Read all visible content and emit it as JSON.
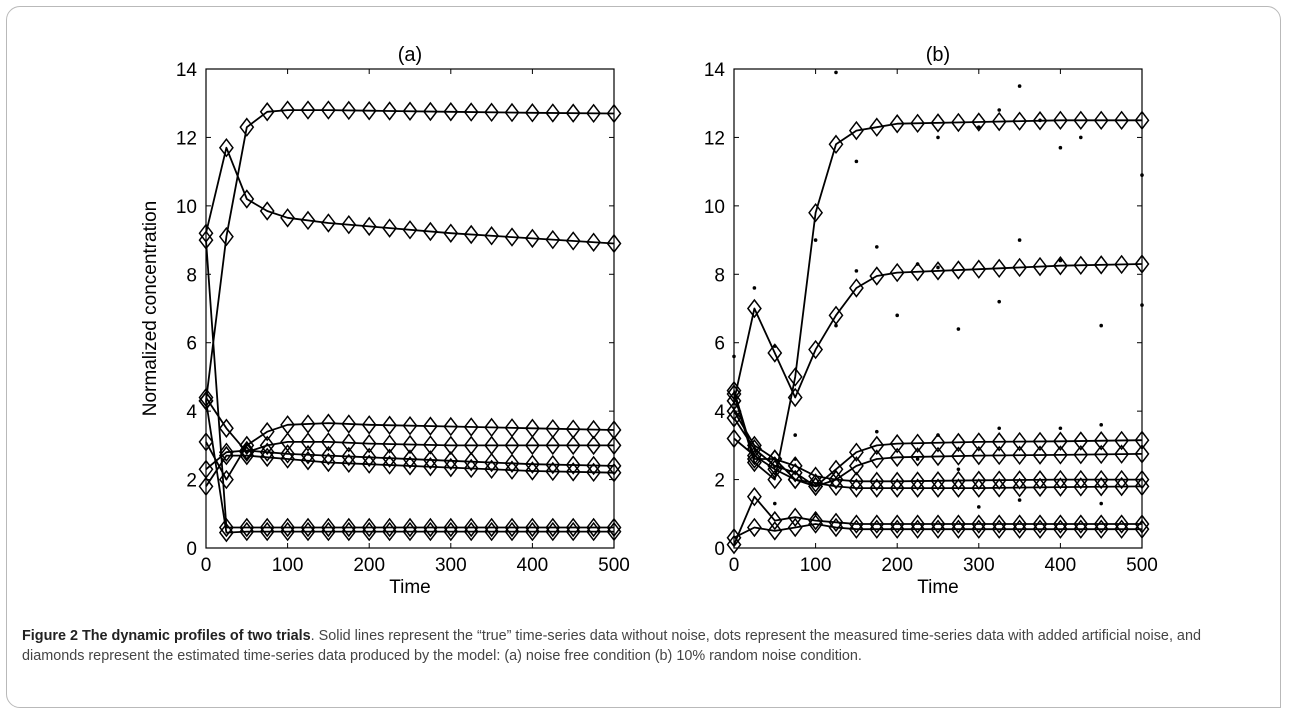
{
  "chart_data": [
    {
      "type": "line",
      "title": "(a)",
      "xlabel": "Time",
      "ylabel": "Normalized concentration",
      "xlim": [
        0,
        500
      ],
      "ylim": [
        0,
        14
      ],
      "xticks": [
        0,
        100,
        200,
        300,
        400,
        500
      ],
      "yticks": [
        0,
        2,
        4,
        6,
        8,
        10,
        12,
        14
      ],
      "marker_x": [
        0,
        25,
        50,
        75,
        100,
        125,
        150,
        175,
        200,
        225,
        250,
        275,
        300,
        325,
        350,
        375,
        400,
        425,
        450,
        475,
        500
      ],
      "series": [
        {
          "x": [
            0,
            25,
            50,
            75,
            100,
            150,
            200,
            300,
            400,
            500
          ],
          "values": [
            4.3,
            9.1,
            12.3,
            12.75,
            12.8,
            12.8,
            12.78,
            12.75,
            12.72,
            12.7
          ],
          "markers": true,
          "dots": false
        },
        {
          "x": [
            0,
            25,
            50,
            75,
            100,
            150,
            200,
            300,
            400,
            500
          ],
          "values": [
            9.2,
            11.7,
            10.2,
            9.85,
            9.65,
            9.5,
            9.4,
            9.2,
            9.05,
            8.9
          ],
          "markers": true,
          "dots": false
        },
        {
          "x": [
            0,
            25,
            50,
            75,
            100,
            150,
            200,
            300,
            400,
            500
          ],
          "values": [
            3.1,
            2.0,
            3.0,
            3.4,
            3.6,
            3.65,
            3.6,
            3.55,
            3.5,
            3.45
          ],
          "markers": true,
          "dots": false
        },
        {
          "x": [
            0,
            25,
            50,
            75,
            100,
            150,
            200,
            300,
            400,
            500
          ],
          "values": [
            4.4,
            3.5,
            2.8,
            3.0,
            3.1,
            3.1,
            3.05,
            3.0,
            3.0,
            3.0
          ],
          "markers": true,
          "dots": false
        },
        {
          "x": [
            0,
            25,
            50,
            75,
            100,
            150,
            200,
            300,
            400,
            500
          ],
          "values": [
            2.3,
            2.8,
            2.85,
            2.8,
            2.75,
            2.7,
            2.65,
            2.55,
            2.45,
            2.4
          ],
          "markers": true,
          "dots": false
        },
        {
          "x": [
            0,
            25,
            50,
            75,
            100,
            150,
            200,
            300,
            400,
            500
          ],
          "values": [
            1.8,
            2.7,
            2.7,
            2.65,
            2.6,
            2.5,
            2.45,
            2.35,
            2.25,
            2.2
          ],
          "markers": true,
          "dots": false
        },
        {
          "x": [
            0,
            25,
            50,
            75,
            100,
            200,
            300,
            400,
            500
          ],
          "values": [
            9.0,
            0.6,
            0.6,
            0.6,
            0.6,
            0.6,
            0.6,
            0.6,
            0.6
          ],
          "markers": true,
          "dots": false
        },
        {
          "x": [
            0,
            25,
            50,
            75,
            100,
            200,
            300,
            400,
            500
          ],
          "values": [
            4.3,
            0.45,
            0.48,
            0.48,
            0.48,
            0.48,
            0.48,
            0.48,
            0.48
          ],
          "markers": true,
          "dots": false
        }
      ]
    },
    {
      "type": "line",
      "title": "(b)",
      "xlabel": "Time",
      "ylabel": "",
      "xlim": [
        0,
        500
      ],
      "ylim": [
        0,
        14
      ],
      "xticks": [
        0,
        100,
        200,
        300,
        400,
        500
      ],
      "yticks": [
        0,
        2,
        4,
        6,
        8,
        10,
        12,
        14
      ],
      "marker_x": [
        0,
        25,
        50,
        75,
        100,
        125,
        150,
        175,
        200,
        225,
        250,
        275,
        300,
        325,
        350,
        375,
        400,
        425,
        450,
        475,
        500
      ],
      "series": [
        {
          "x": [
            0,
            25,
            50,
            75,
            100,
            125,
            150,
            175,
            200,
            300,
            400,
            500
          ],
          "values": [
            4.5,
            2.5,
            2.0,
            5.0,
            9.8,
            11.8,
            12.2,
            12.3,
            12.4,
            12.45,
            12.5,
            12.5
          ],
          "markers": true,
          "dots": true
        },
        {
          "x": [
            0,
            25,
            50,
            75,
            100,
            125,
            150,
            175,
            200,
            300,
            400,
            500
          ],
          "values": [
            4.3,
            7.0,
            5.7,
            4.4,
            5.8,
            6.8,
            7.6,
            7.95,
            8.05,
            8.15,
            8.25,
            8.3
          ],
          "markers": true,
          "dots": true
        },
        {
          "x": [
            0,
            25,
            50,
            75,
            100,
            125,
            150,
            175,
            200,
            300,
            400,
            500
          ],
          "values": [
            4.0,
            3.0,
            2.6,
            2.0,
            1.8,
            2.3,
            2.8,
            3.0,
            3.05,
            3.1,
            3.12,
            3.15
          ],
          "markers": true,
          "dots": true
        },
        {
          "x": [
            0,
            25,
            50,
            75,
            100,
            125,
            150,
            175,
            200,
            300,
            400,
            500
          ],
          "values": [
            3.8,
            2.9,
            2.4,
            2.2,
            1.8,
            2.0,
            2.4,
            2.6,
            2.65,
            2.7,
            2.72,
            2.75
          ],
          "markers": true,
          "dots": true
        },
        {
          "x": [
            0,
            25,
            50,
            75,
            100,
            125,
            150,
            175,
            200,
            300,
            400,
            500
          ],
          "values": [
            4.6,
            2.6,
            2.6,
            2.4,
            2.1,
            2.0,
            1.95,
            1.95,
            1.95,
            1.98,
            2.0,
            2.0
          ],
          "markers": true,
          "dots": true
        },
        {
          "x": [
            0,
            25,
            50,
            75,
            100,
            125,
            150,
            175,
            200,
            300,
            400,
            500
          ],
          "values": [
            3.2,
            2.7,
            2.3,
            2.0,
            1.9,
            1.8,
            1.75,
            1.75,
            1.75,
            1.75,
            1.78,
            1.8
          ],
          "markers": true,
          "dots": true
        },
        {
          "x": [
            0,
            25,
            50,
            75,
            100,
            125,
            150,
            200,
            300,
            400,
            500
          ],
          "values": [
            0.1,
            1.5,
            0.8,
            0.9,
            0.8,
            0.75,
            0.7,
            0.7,
            0.7,
            0.7,
            0.7
          ],
          "markers": true,
          "dots": true
        },
        {
          "x": [
            0,
            25,
            50,
            75,
            100,
            125,
            150,
            200,
            300,
            400,
            500
          ],
          "values": [
            0.3,
            0.6,
            0.5,
            0.6,
            0.7,
            0.6,
            0.55,
            0.55,
            0.55,
            0.55,
            0.55
          ],
          "markers": true,
          "dots": true
        }
      ],
      "noisy_points": [
        {
          "x": 0,
          "y": 5.6
        },
        {
          "x": 25,
          "y": 7.6
        },
        {
          "x": 50,
          "y": 5.9
        },
        {
          "x": 75,
          "y": 3.3
        },
        {
          "x": 100,
          "y": 9.0
        },
        {
          "x": 125,
          "y": 13.9
        },
        {
          "x": 150,
          "y": 11.3
        },
        {
          "x": 150,
          "y": 8.1
        },
        {
          "x": 175,
          "y": 8.8
        },
        {
          "x": 200,
          "y": 6.8
        },
        {
          "x": 225,
          "y": 8.3
        },
        {
          "x": 250,
          "y": 8.2
        },
        {
          "x": 250,
          "y": 12.0
        },
        {
          "x": 275,
          "y": 6.4
        },
        {
          "x": 300,
          "y": 12.3
        },
        {
          "x": 325,
          "y": 12.8
        },
        {
          "x": 325,
          "y": 7.2
        },
        {
          "x": 350,
          "y": 13.5
        },
        {
          "x": 350,
          "y": 9.0
        },
        {
          "x": 375,
          "y": 12.5
        },
        {
          "x": 400,
          "y": 11.7
        },
        {
          "x": 400,
          "y": 8.4
        },
        {
          "x": 425,
          "y": 12.0
        },
        {
          "x": 450,
          "y": 6.5
        },
        {
          "x": 500,
          "y": 10.9
        },
        {
          "x": 500,
          "y": 7.1
        },
        {
          "x": 125,
          "y": 6.5
        },
        {
          "x": 325,
          "y": 3.5
        },
        {
          "x": 250,
          "y": 3.3
        },
        {
          "x": 450,
          "y": 3.6
        },
        {
          "x": 400,
          "y": 3.5
        },
        {
          "x": 175,
          "y": 3.4
        },
        {
          "x": 225,
          "y": 2.6
        },
        {
          "x": 275,
          "y": 2.3
        },
        {
          "x": 350,
          "y": 1.4
        },
        {
          "x": 450,
          "y": 1.3
        },
        {
          "x": 300,
          "y": 1.2
        },
        {
          "x": 75,
          "y": 2.6
        },
        {
          "x": 100,
          "y": 1.0
        },
        {
          "x": 50,
          "y": 1.3
        }
      ]
    }
  ],
  "caption": {
    "title": "Figure 2 The dynamic profiles of two trials",
    "text": ". Solid lines represent the “true” time-series data without noise, dots represent the measured time-series data with added artificial noise, and diamonds represent the estimated time-series data produced by the model: (a) noise free condition (b) 10% random noise condition."
  },
  "colors": {
    "ink": "#000000",
    "frame": "#b9b9b9",
    "caption_text": "#444444"
  }
}
